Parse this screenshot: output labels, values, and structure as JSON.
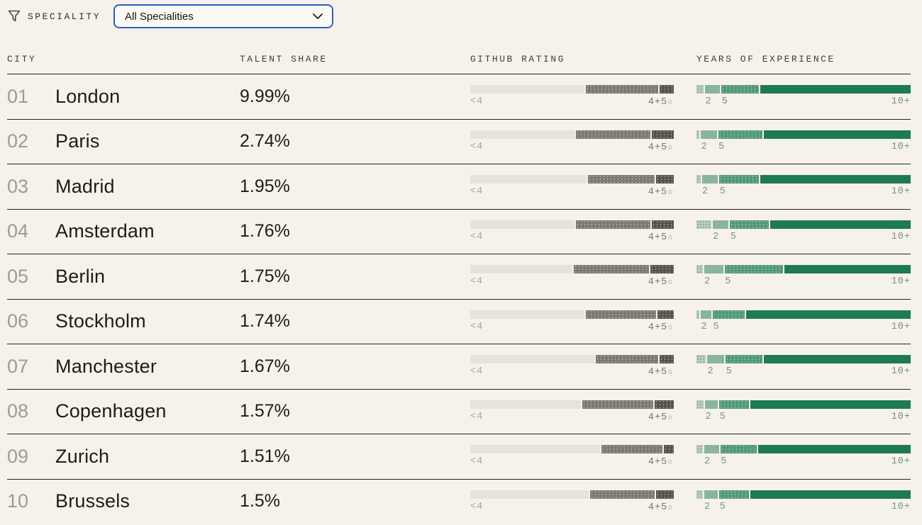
{
  "filter": {
    "label": "SPECIALITY",
    "dropdown_value": "All Specialities"
  },
  "columns": {
    "city": "CITY",
    "talent_share": "TALENT SHARE",
    "github_rating": "GITHUB RATING",
    "years_experience": "YEARS OF EXPERIENCE"
  },
  "bar_labels": {
    "github_left": "<4",
    "github_right": "4+5",
    "github_star": "☆",
    "years_2": "2",
    "years_5": "5",
    "years_right": "10+"
  },
  "colors": {
    "background": "#f7f2e9",
    "divider": "#26251f",
    "dropdown_border": "#2b5ccc",
    "github_light": "#e7e3da",
    "github_mid": "#7d7770",
    "github_dark": "#55514b",
    "years_under2": "#b7cfc0",
    "years_2to5": "#89b59d",
    "years_5to10": "#4f9878",
    "years_10plus": "#1e7a50"
  },
  "rows": [
    {
      "rank": "01",
      "city": "London",
      "talent_share": "9.99%",
      "github_segments": [
        57,
        36,
        7
      ],
      "years_segments": [
        3.5,
        7,
        18,
        71.5
      ]
    },
    {
      "rank": "02",
      "city": "Paris",
      "talent_share": "2.74%",
      "github_segments": [
        52,
        37,
        11
      ],
      "years_segments": [
        1.5,
        7.5,
        21,
        70
      ]
    },
    {
      "rank": "03",
      "city": "Madrid",
      "talent_share": "1.95%",
      "github_segments": [
        58,
        33,
        9
      ],
      "years_segments": [
        2,
        7.5,
        19,
        71.5
      ]
    },
    {
      "rank": "04",
      "city": "Amsterdam",
      "talent_share": "1.76%",
      "github_segments": [
        52,
        37,
        11
      ],
      "years_segments": [
        7,
        7.5,
        18.5,
        67
      ]
    },
    {
      "rank": "05",
      "city": "Berlin",
      "talent_share": "1.75%",
      "github_segments": [
        51,
        37.5,
        11.5
      ],
      "years_segments": [
        3,
        9,
        28,
        60
      ]
    },
    {
      "rank": "06",
      "city": "Stockholm",
      "talent_share": "1.74%",
      "github_segments": [
        57,
        35,
        8
      ],
      "years_segments": [
        1.5,
        5,
        15,
        78.5
      ]
    },
    {
      "rank": "07",
      "city": "Manchester",
      "talent_share": "1.67%",
      "github_segments": [
        62,
        31,
        7
      ],
      "years_segments": [
        4.5,
        8,
        17.5,
        70
      ]
    },
    {
      "rank": "08",
      "city": "Copenhagen",
      "talent_share": "1.57%",
      "github_segments": [
        55,
        35.5,
        9.5
      ],
      "years_segments": [
        3.5,
        6,
        14,
        76.5
      ]
    },
    {
      "rank": "09",
      "city": "Zurich",
      "talent_share": "1.51%",
      "github_segments": [
        64.5,
        30.5,
        5
      ],
      "years_segments": [
        3,
        7,
        17.5,
        72.5
      ]
    },
    {
      "rank": "10",
      "city": "Brussels",
      "talent_share": "1.5%",
      "github_segments": [
        59,
        32,
        9
      ],
      "years_segments": [
        3,
        6.5,
        14,
        76.5
      ]
    }
  ]
}
